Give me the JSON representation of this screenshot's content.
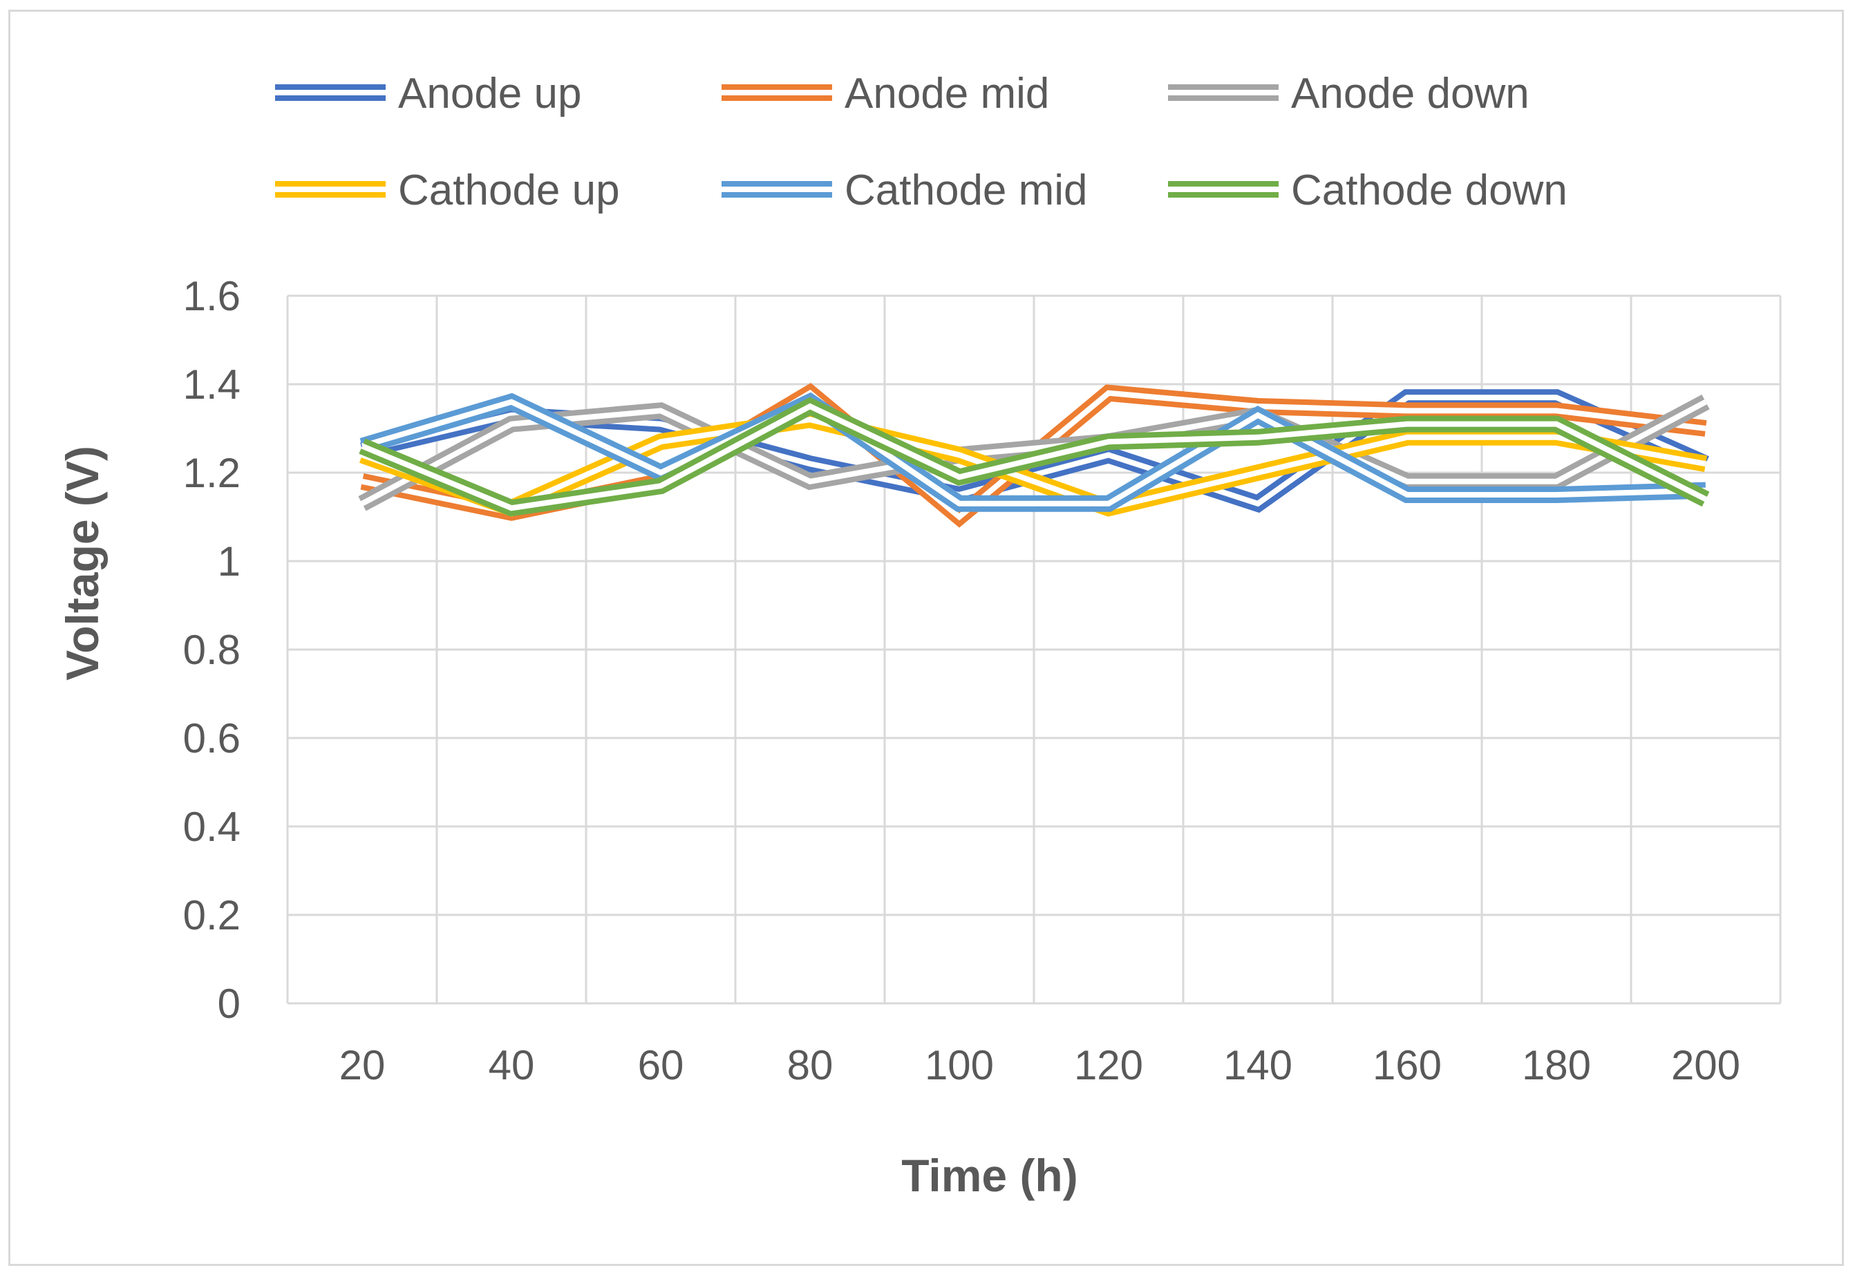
{
  "chart_data": {
    "type": "line",
    "title": "",
    "xlabel": "Time (h)",
    "ylabel": "Voltage (V)",
    "categories": [
      "20",
      "40",
      "60",
      "80",
      "100",
      "120",
      "140",
      "160",
      "180",
      "200"
    ],
    "ylim": [
      0,
      1.6
    ],
    "yticks": [
      0,
      0.2,
      0.4,
      0.6,
      0.8,
      1,
      1.2,
      1.4,
      1.6
    ],
    "ytick_labels": [
      "0",
      "0.2",
      "0.4",
      "0.6",
      "0.8",
      "1",
      "1.2",
      "1.4",
      "1.6"
    ],
    "grid": true,
    "legend_position": "top",
    "series": [
      {
        "name": "Anode up",
        "color": "#4472c4",
        "values": [
          1.25,
          1.33,
          1.31,
          1.22,
          1.15,
          1.24,
          1.13,
          1.37,
          1.37,
          1.22
        ]
      },
      {
        "name": "Anode mid",
        "color": "#ed7d31",
        "values": [
          1.18,
          1.11,
          1.18,
          1.38,
          1.1,
          1.38,
          1.35,
          1.34,
          1.34,
          1.3
        ]
      },
      {
        "name": "Anode down",
        "color": "#a5a5a5",
        "values": [
          1.13,
          1.31,
          1.34,
          1.18,
          1.24,
          1.27,
          1.33,
          1.18,
          1.18,
          1.36
        ]
      },
      {
        "name": "Cathode up",
        "color": "#ffc000",
        "values": [
          1.24,
          1.12,
          1.27,
          1.32,
          1.24,
          1.12,
          1.2,
          1.28,
          1.28,
          1.22
        ]
      },
      {
        "name": "Cathode mid",
        "color": "#5b9bd5",
        "values": [
          1.26,
          1.36,
          1.2,
          1.36,
          1.13,
          1.13,
          1.33,
          1.15,
          1.15,
          1.16
        ]
      },
      {
        "name": "Cathode down",
        "color": "#70ad47",
        "values": [
          1.26,
          1.12,
          1.17,
          1.35,
          1.19,
          1.27,
          1.28,
          1.31,
          1.31,
          1.14
        ]
      }
    ]
  }
}
